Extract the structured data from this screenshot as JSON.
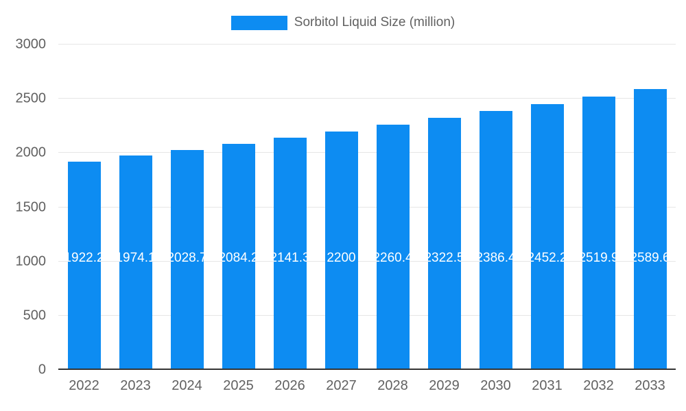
{
  "legend": {
    "label": "Sorbitol Liquid Size (million)"
  },
  "colors": {
    "bar": "#0D8CF2",
    "grid": "#E6E6E6",
    "baseline": "#333333",
    "axis_text": "#616161",
    "annotation_text": "#FFFFFF",
    "background": "#FFFFFF"
  },
  "chart_data": {
    "type": "bar",
    "title": "Sorbitol Liquid Size (million)",
    "xlabel": "",
    "ylabel": "",
    "categories": [
      "2022",
      "2023",
      "2024",
      "2025",
      "2026",
      "2027",
      "2028",
      "2029",
      "2030",
      "2031",
      "2032",
      "2033"
    ],
    "values": [
      1922.2,
      1974.1,
      2028.7,
      2084.2,
      2141.3,
      2200,
      2260.4,
      2322.5,
      2386.4,
      2452.2,
      2519.9,
      2589.6
    ],
    "value_labels": [
      "1922.2",
      "1974.1",
      "2028.7",
      "2084.2",
      "2141.3",
      "2200",
      "2260.4",
      "2322.5",
      "2386.4",
      "2452.2",
      "2519.9",
      "2589.6"
    ],
    "series_name": "Sorbitol Liquid Size (million)",
    "ylim": [
      0,
      3000
    ],
    "yticks": [
      0,
      500,
      1000,
      1500,
      2000,
      2500,
      3000
    ],
    "grid": "horizontal",
    "legend_position": "top"
  }
}
